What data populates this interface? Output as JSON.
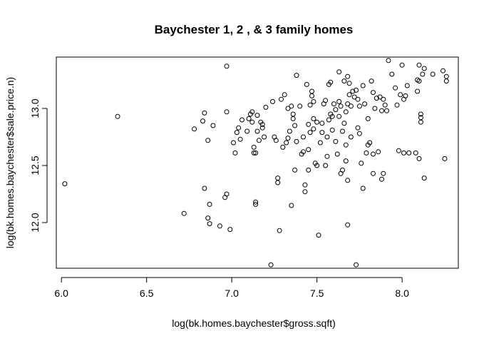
{
  "chart_data": {
    "type": "scatter",
    "title": "Baychester 1, 2 , & 3 family homes",
    "xlabel": "log(bk.homes.baychester$gross.sqft)",
    "ylabel": "log(bk.homes.baychester$sale.price.n)",
    "xlim": [
      5.97,
      8.33
    ],
    "ylim": [
      11.6,
      13.45
    ],
    "xticks": [
      "6.0",
      "6.5",
      "7.0",
      "7.5",
      "8.0"
    ],
    "yticks": [
      "12.0",
      "12.5",
      "13.0"
    ],
    "grid": false,
    "legend": "none",
    "colors": {
      "points": "#000000",
      "axes": "#000000",
      "background": "#ffffff"
    },
    "points": [
      [
        6.02,
        12.34
      ],
      [
        6.33,
        12.93
      ],
      [
        6.72,
        12.08
      ],
      [
        6.78,
        12.82
      ],
      [
        6.83,
        12.89
      ],
      [
        6.84,
        12.96
      ],
      [
        6.84,
        12.3
      ],
      [
        6.86,
        12.72
      ],
      [
        6.86,
        12.04
      ],
      [
        6.87,
        12.16
      ],
      [
        6.87,
        11.99
      ],
      [
        6.89,
        12.85
      ],
      [
        6.93,
        11.97
      ],
      [
        6.96,
        12.22
      ],
      [
        6.97,
        12.25
      ],
      [
        6.97,
        12.97
      ],
      [
        6.97,
        13.37
      ],
      [
        6.99,
        11.94
      ],
      [
        7.01,
        12.7
      ],
      [
        7.02,
        12.61
      ],
      [
        7.03,
        12.79
      ],
      [
        7.04,
        12.83
      ],
      [
        7.05,
        12.73
      ],
      [
        7.06,
        12.9
      ],
      [
        7.09,
        12.8
      ],
      [
        7.1,
        12.91
      ],
      [
        7.11,
        12.95
      ],
      [
        7.12,
        12.97
      ],
      [
        7.12,
        12.88
      ],
      [
        7.13,
        12.66
      ],
      [
        7.13,
        12.61
      ],
      [
        7.14,
        12.61
      ],
      [
        7.14,
        12.18
      ],
      [
        7.14,
        12.16
      ],
      [
        7.15,
        12.94
      ],
      [
        7.15,
        12.8
      ],
      [
        7.16,
        12.72
      ],
      [
        7.17,
        12.88
      ],
      [
        7.18,
        12.86
      ],
      [
        7.18,
        12.83
      ],
      [
        7.19,
        12.75
      ],
      [
        7.2,
        13.01
      ],
      [
        7.23,
        11.63
      ],
      [
        7.24,
        13.06
      ],
      [
        7.25,
        12.75
      ],
      [
        7.26,
        12.72
      ],
      [
        7.27,
        12.35
      ],
      [
        7.27,
        12.39
      ],
      [
        7.28,
        11.93
      ],
      [
        7.29,
        13.08
      ],
      [
        7.3,
        12.66
      ],
      [
        7.31,
        13.12
      ],
      [
        7.32,
        12.7
      ],
      [
        7.33,
        12.74
      ],
      [
        7.33,
        13.0
      ],
      [
        7.34,
        12.8
      ],
      [
        7.35,
        13.02
      ],
      [
        7.35,
        12.15
      ],
      [
        7.36,
        12.95
      ],
      [
        7.36,
        12.91
      ],
      [
        7.37,
        12.85
      ],
      [
        7.37,
        12.46
      ],
      [
        7.38,
        12.71
      ],
      [
        7.38,
        13.29
      ],
      [
        7.4,
        13.02
      ],
      [
        7.41,
        12.6
      ],
      [
        7.42,
        12.75
      ],
      [
        7.42,
        12.62
      ],
      [
        7.43,
        12.27
      ],
      [
        7.43,
        12.33
      ],
      [
        7.44,
        13.21
      ],
      [
        7.45,
        12.86
      ],
      [
        7.45,
        12.46
      ],
      [
        7.45,
        12.64
      ],
      [
        7.46,
        12.79
      ],
      [
        7.46,
        13.03
      ],
      [
        7.47,
        13.11
      ],
      [
        7.47,
        13.15
      ],
      [
        7.48,
        12.91
      ],
      [
        7.48,
        12.82
      ],
      [
        7.48,
        13.06
      ],
      [
        7.49,
        12.52
      ],
      [
        7.5,
        12.5
      ],
      [
        7.5,
        12.88
      ],
      [
        7.51,
        11.89
      ],
      [
        7.52,
        12.7
      ],
      [
        7.53,
        12.79
      ],
      [
        7.53,
        12.87
      ],
      [
        7.54,
        13.04
      ],
      [
        7.55,
        13.07
      ],
      [
        7.55,
        12.5
      ],
      [
        7.56,
        12.75
      ],
      [
        7.56,
        12.58
      ],
      [
        7.57,
        13.21
      ],
      [
        7.57,
        12.9
      ],
      [
        7.58,
        12.95
      ],
      [
        7.58,
        13.23
      ],
      [
        7.59,
        12.93
      ],
      [
        7.59,
        12.81
      ],
      [
        7.6,
        13.04
      ],
      [
        7.61,
        12.99
      ],
      [
        7.61,
        12.71
      ],
      [
        7.62,
        12.6
      ],
      [
        7.63,
        13.32
      ],
      [
        7.63,
        13.06
      ],
      [
        7.63,
        12.93
      ],
      [
        7.64,
        13.02
      ],
      [
        7.64,
        12.43
      ],
      [
        7.65,
        12.46
      ],
      [
        7.65,
        12.8
      ],
      [
        7.66,
        13.24
      ],
      [
        7.66,
        12.87
      ],
      [
        7.67,
        12.97
      ],
      [
        7.67,
        12.68
      ],
      [
        7.67,
        12.54
      ],
      [
        7.68,
        13.28
      ],
      [
        7.68,
        13.04
      ],
      [
        7.68,
        11.98
      ],
      [
        7.68,
        12.37
      ],
      [
        7.69,
        13.22
      ],
      [
        7.69,
        13.12
      ],
      [
        7.7,
        13.02
      ],
      [
        7.7,
        12.75
      ],
      [
        7.71,
        13.15
      ],
      [
        7.72,
        13.1
      ],
      [
        7.73,
        13.16
      ],
      [
        7.73,
        11.63
      ],
      [
        7.74,
        13.08
      ],
      [
        7.74,
        12.83
      ],
      [
        7.75,
        12.78
      ],
      [
        7.75,
        13.02
      ],
      [
        7.76,
        12.52
      ],
      [
        7.77,
        12.3
      ],
      [
        7.77,
        13.2
      ],
      [
        7.78,
        13.04
      ],
      [
        7.79,
        12.61
      ],
      [
        7.8,
        12.68
      ],
      [
        7.8,
        12.91
      ],
      [
        7.81,
        12.7
      ],
      [
        7.82,
        13.24
      ],
      [
        7.83,
        12.43
      ],
      [
        7.83,
        13.14
      ],
      [
        7.83,
        12.6
      ],
      [
        7.84,
        13.0
      ],
      [
        7.85,
        13.09
      ],
      [
        7.86,
        12.62
      ],
      [
        7.87,
        13.1
      ],
      [
        7.88,
        12.38
      ],
      [
        7.88,
        12.98
      ],
      [
        7.89,
        13.08
      ],
      [
        7.89,
        12.43
      ],
      [
        7.9,
        13.03
      ],
      [
        7.91,
        12.98
      ],
      [
        7.92,
        13.42
      ],
      [
        7.94,
        13.3
      ],
      [
        7.96,
        13.18
      ],
      [
        7.97,
        13.03
      ],
      [
        7.98,
        12.63
      ],
      [
        7.99,
        13.12
      ],
      [
        8.0,
        13.38
      ],
      [
        8.01,
        13.08
      ],
      [
        8.01,
        12.61
      ],
      [
        8.02,
        13.11
      ],
      [
        8.03,
        13.2
      ],
      [
        8.04,
        12.61
      ],
      [
        8.08,
        12.61
      ],
      [
        8.09,
        13.25
      ],
      [
        8.09,
        13.15
      ],
      [
        8.1,
        12.56
      ],
      [
        8.1,
        13.24
      ],
      [
        8.1,
        13.38
      ],
      [
        8.11,
        12.95
      ],
      [
        8.11,
        12.92
      ],
      [
        8.11,
        12.88
      ],
      [
        8.12,
        13.3
      ],
      [
        8.13,
        13.35
      ],
      [
        8.13,
        12.39
      ],
      [
        8.18,
        13.3
      ],
      [
        8.24,
        13.33
      ],
      [
        8.25,
        12.56
      ],
      [
        8.26,
        13.28
      ],
      [
        8.26,
        13.24
      ]
    ]
  }
}
